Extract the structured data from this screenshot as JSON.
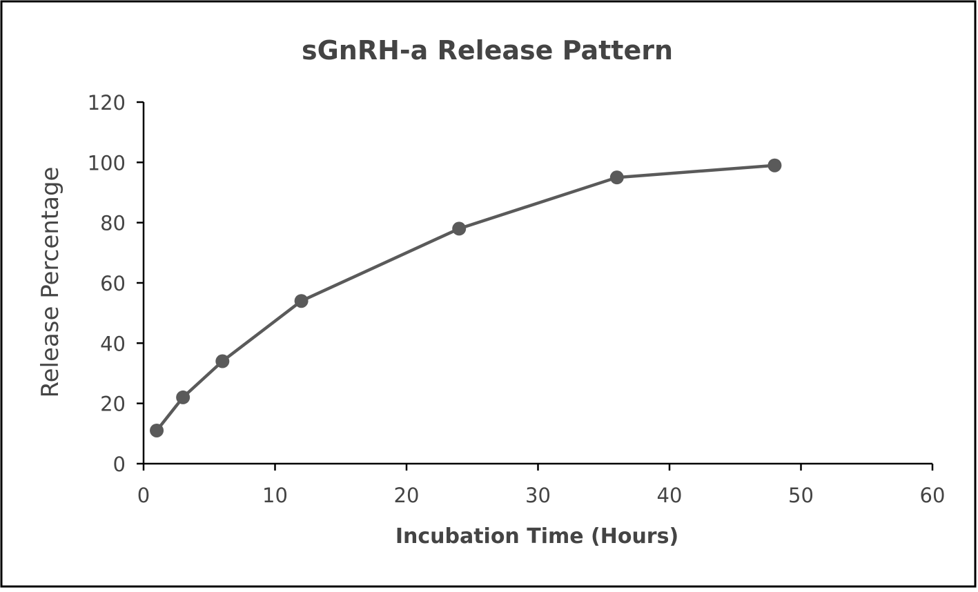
{
  "chart_data": {
    "type": "line",
    "title": "sGnRH-a Release Pattern",
    "xlabel": "Incubation Time (Hours)",
    "ylabel": "Release Percentage",
    "xlim": [
      0,
      60
    ],
    "ylim": [
      0,
      120
    ],
    "x_ticks": [
      0,
      10,
      20,
      30,
      40,
      50,
      60
    ],
    "y_ticks": [
      0,
      20,
      40,
      60,
      80,
      100,
      120
    ],
    "grid": false,
    "legend": "none",
    "series": [
      {
        "color": "#5a5a5a",
        "points": [
          {
            "x": 1,
            "y": 11
          },
          {
            "x": 3,
            "y": 22
          },
          {
            "x": 6,
            "y": 34
          },
          {
            "x": 12,
            "y": 54
          },
          {
            "x": 24,
            "y": 78
          },
          {
            "x": 36,
            "y": 95
          },
          {
            "x": 48,
            "y": 99
          }
        ]
      }
    ]
  },
  "colors": {
    "frame": "#000000",
    "axis": "#000000",
    "text": "#444444",
    "series": "#5a5a5a"
  }
}
